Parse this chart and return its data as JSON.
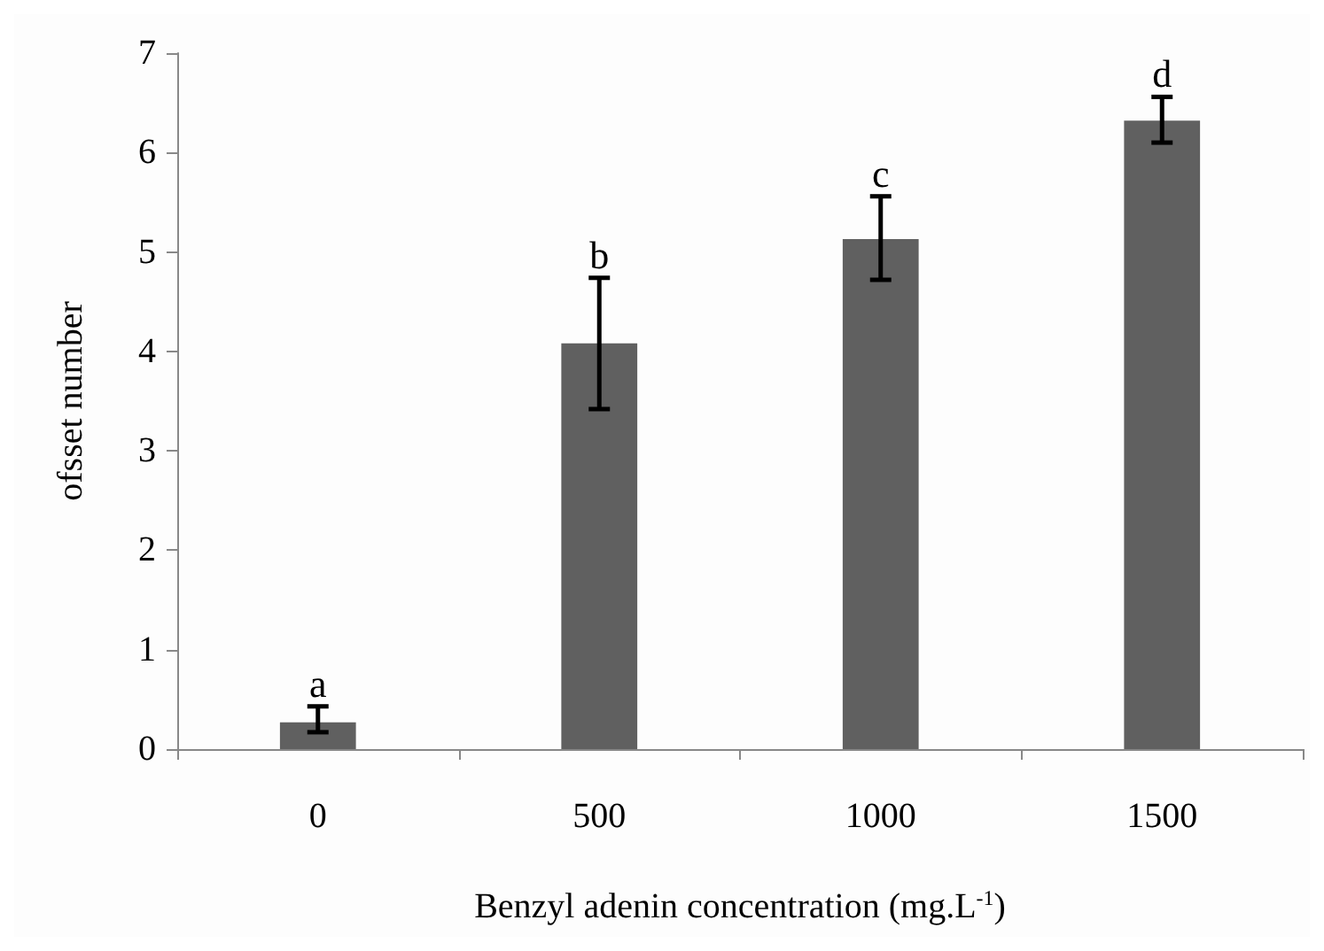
{
  "chart_data": {
    "type": "bar",
    "xlabel": "Benzyl adenin concentration (mg.L$^{-1}$)",
    "ylabel": "ofsset number",
    "categories": [
      "0",
      "500",
      "1000",
      "1500"
    ],
    "values": [
      0.27,
      4.08,
      5.13,
      6.32
    ],
    "color": "#606060",
    "errors": [
      [
        0.17,
        0.43
      ],
      [
        3.42,
        4.74
      ],
      [
        4.72,
        5.56
      ],
      [
        6.1,
        6.56
      ]
    ],
    "ylim": [
      0,
      7
    ],
    "yticks": [
      0,
      1,
      2,
      3,
      4,
      5,
      6,
      7
    ],
    "grid": false,
    "annotations": [
      {
        "text": "a",
        "x": "0",
        "y": 0.43
      },
      {
        "text": "b",
        "x": "500",
        "y": 4.74
      },
      {
        "text": "c",
        "x": "1000",
        "y": 5.56
      },
      {
        "text": "d",
        "x": "1500",
        "y": 6.56
      }
    ]
  }
}
